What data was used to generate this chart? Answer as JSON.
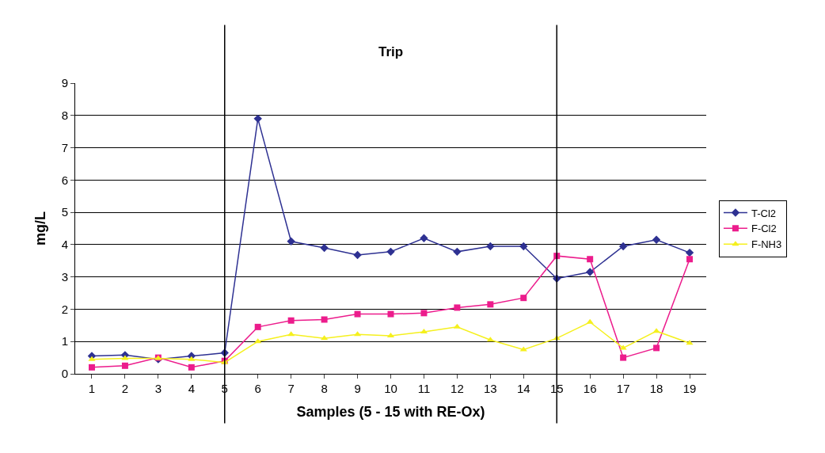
{
  "chart_data": {
    "type": "line",
    "xlabel": "Samples (5 - 15 with RE-Ox)",
    "ylabel": "mg/L",
    "x": [
      1,
      2,
      3,
      4,
      5,
      6,
      7,
      8,
      9,
      10,
      11,
      12,
      13,
      14,
      15,
      16,
      17,
      18,
      19
    ],
    "xlim": [
      0.5,
      19.5
    ],
    "xticks": [
      1,
      2,
      3,
      4,
      5,
      6,
      7,
      8,
      9,
      10,
      11,
      12,
      13,
      14,
      15,
      16,
      17,
      18,
      19
    ],
    "ylim": [
      0,
      9
    ],
    "yticks": [
      0,
      1,
      2,
      3,
      4,
      5,
      6,
      7,
      8,
      9
    ],
    "grid": "y",
    "legend": "right",
    "annotations": [
      "Trip"
    ],
    "ref_lines": [
      {
        "axis": "x",
        "value": 5,
        "color": "#000000"
      },
      {
        "axis": "x",
        "value": 15,
        "color": "#000000"
      }
    ],
    "series": [
      {
        "name": "T-Cl2",
        "color": "#2e3192",
        "marker": "diamond",
        "values": [
          0.55,
          0.58,
          0.45,
          0.55,
          0.65,
          7.9,
          4.1,
          3.9,
          3.68,
          3.78,
          4.2,
          3.78,
          3.95,
          3.95,
          2.95,
          3.15,
          3.95,
          4.15,
          3.75
        ]
      },
      {
        "name": "F-Cl2",
        "color": "#ec1c8c",
        "marker": "square",
        "values": [
          0.2,
          0.25,
          0.5,
          0.2,
          0.4,
          1.45,
          1.65,
          1.68,
          1.85,
          1.85,
          1.88,
          2.05,
          2.15,
          2.35,
          3.65,
          3.55,
          0.5,
          0.8,
          3.55
        ]
      },
      {
        "name": "F-NH3",
        "color": "#f5f01e",
        "marker": "triangle",
        "values": [
          0.45,
          0.48,
          0.48,
          0.45,
          0.35,
          1.0,
          1.22,
          1.1,
          1.22,
          1.18,
          1.3,
          1.45,
          1.05,
          0.75,
          1.1,
          1.6,
          0.8,
          1.32,
          0.95
        ]
      }
    ]
  }
}
